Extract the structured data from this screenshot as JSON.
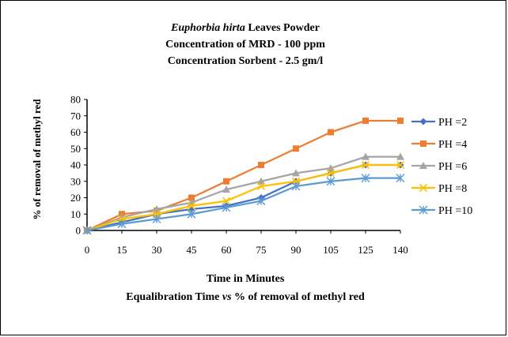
{
  "chart_data": {
    "type": "line",
    "title_lines": [
      {
        "italic": "Euphorbia hirta",
        "rest": " Leaves Powder"
      },
      {
        "text": "Concentration  of MRD  - 100 ppm"
      },
      {
        "text": "Concentration  Sorbent - 2.5 gm/l"
      }
    ],
    "categories": [
      "0",
      "15",
      "30",
      "45",
      "60",
      "75",
      "90",
      "105",
      "125",
      "140"
    ],
    "ylim": [
      0,
      80
    ],
    "yticks": [
      0,
      10,
      20,
      30,
      40,
      50,
      60,
      70,
      80
    ],
    "ylabel": "% of removal  of  methyl  red",
    "xlabel": "Time  in Minutes",
    "caption": {
      "pre": "Equalibration  Time  ",
      "italic": "vs",
      "post": " % of removal  of methyl red"
    },
    "legend_position": "right",
    "grid": false,
    "series": [
      {
        "name": "PH =2",
        "color": "#4472C4",
        "marker": "diamond",
        "values": [
          0,
          5,
          10,
          13,
          15,
          20,
          30,
          35,
          40,
          40
        ]
      },
      {
        "name": "PH =4",
        "color": "#ED7D31",
        "marker": "square",
        "values": [
          0,
          10,
          12,
          20,
          30,
          40,
          50,
          60,
          67,
          67
        ]
      },
      {
        "name": "PH =6",
        "color": "#A5A5A5",
        "marker": "triangle",
        "values": [
          0,
          8,
          13,
          17,
          25,
          30,
          35,
          38,
          45,
          45
        ]
      },
      {
        "name": "PH =8",
        "color": "#FFC000",
        "marker": "x",
        "values": [
          0,
          7,
          10,
          15,
          18,
          27,
          30,
          35,
          40,
          40
        ]
      },
      {
        "name": "PH =10",
        "color": "#5B9BD5",
        "marker": "asterisk",
        "values": [
          0,
          4,
          7,
          10,
          14,
          18,
          27,
          30,
          32,
          32
        ]
      }
    ]
  }
}
